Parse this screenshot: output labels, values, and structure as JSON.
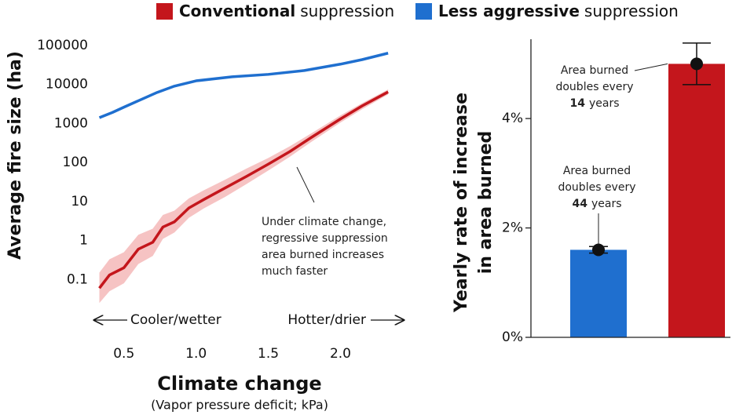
{
  "legend": [
    {
      "color": "#c4161c",
      "bold": "Conventional",
      "text": "suppression"
    },
    {
      "color": "#1f6fcf",
      "bold": "Less aggressive",
      "text": "suppression"
    }
  ],
  "chart_data": [
    {
      "type": "line",
      "log_y": true,
      "y_label": "Average fire size (ha)",
      "x_label": "Climate change",
      "x_sublabel": "(Vapor pressure deficit; kPa)",
      "xlim": [
        0.3,
        2.4
      ],
      "xticks": [
        0.5,
        {
          "value": 1,
          "label": "1.0"
        },
        1.5,
        {
          "value": 2,
          "label": "2.0"
        }
      ],
      "ylim": [
        0.01,
        150000
      ],
      "yticks": [
        0.1,
        1,
        10,
        100,
        1000,
        10000,
        100000
      ],
      "series": [
        {
          "color": "#1f6fcf",
          "x": [
            0.33,
            0.42,
            0.5,
            0.6,
            0.73,
            0.85,
            1.0,
            1.25,
            1.5,
            1.75,
            2.0,
            2.15,
            2.33
          ],
          "values": [
            1400,
            1900,
            2600,
            3800,
            6200,
            9000,
            12300,
            15600,
            18000,
            22600,
            32900,
            43000,
            63000
          ]
        },
        {
          "color": "#c4161c",
          "band_color": "#f6c3c3",
          "x": [
            0.33,
            0.4,
            0.5,
            0.6,
            0.7,
            0.77,
            0.85,
            0.95,
            1.05,
            1.2,
            1.35,
            1.5,
            1.65,
            1.8,
            2.0,
            2.15,
            2.33
          ],
          "values": [
            0.06,
            0.13,
            0.2,
            0.6,
            0.9,
            2.2,
            3,
            6.8,
            11,
            22,
            44,
            90,
            190,
            440,
            1300,
            2800,
            6400
          ],
          "lower": [
            0.025,
            0.05,
            0.08,
            0.25,
            0.4,
            1.1,
            1.6,
            3.8,
            6.5,
            13,
            28,
            62,
            140,
            340,
            1050,
            2300,
            5500
          ],
          "upper": [
            0.15,
            0.33,
            0.5,
            1.4,
            2,
            4.5,
            5.8,
            12,
            19,
            36,
            70,
            130,
            260,
            560,
            1600,
            3300,
            7400
          ]
        }
      ],
      "annotation": [
        "Under climate change,",
        "regressive suppression",
        "area burned increases",
        "much faster"
      ],
      "left_arrow_label": "Cooler/wetter",
      "right_arrow_label": "Hotter/drier"
    },
    {
      "type": "bar",
      "y_label": [
        "Yearly rate of increase",
        "in area burned"
      ],
      "categories": [
        null,
        null
      ],
      "values": [
        1.6,
        5.0
      ],
      "errors": [
        0.06,
        0.38
      ],
      "colors": [
        "#1f6fcf",
        "#c4161c"
      ],
      "ylim": [
        0,
        5.45
      ],
      "yticks": [
        {
          "value": 0,
          "label": "0%"
        },
        {
          "value": 2,
          "label": "2%"
        },
        {
          "value": 4,
          "label": "4%"
        }
      ],
      "annotations": [
        {
          "lines": [
            "Area burned",
            "doubles every"
          ],
          "bold": "44",
          "rest": "years"
        },
        {
          "lines": [
            "Area burned",
            "doubles every"
          ],
          "bold": "14",
          "rest": "years"
        }
      ]
    }
  ]
}
